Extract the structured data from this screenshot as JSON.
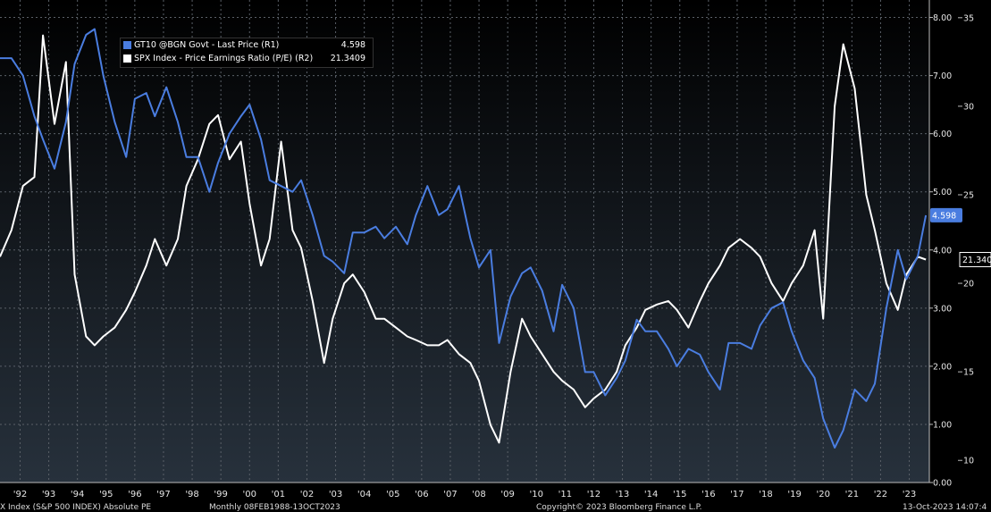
{
  "chart_data": {
    "type": "line",
    "colors": {
      "gt10": "#4a7de0",
      "pe": "#ffffff",
      "background_top": "#000000",
      "background_bottom": "#27313c",
      "grid": "#5a6068"
    },
    "x_range": [
      1991.5,
      2023.9
    ],
    "x_ticks": [
      {
        "label": "'92",
        "x": 1992.2
      },
      {
        "label": "'93",
        "x": 1993.2
      },
      {
        "label": "'94",
        "x": 1994.2
      },
      {
        "label": "'95",
        "x": 1995.2
      },
      {
        "label": "'96",
        "x": 1996.2
      },
      {
        "label": "'97",
        "x": 1997.2
      },
      {
        "label": "'98",
        "x": 1998.2
      },
      {
        "label": "'99",
        "x": 1999.2
      },
      {
        "label": "'00",
        "x": 2000.2
      },
      {
        "label": "'01",
        "x": 2001.2
      },
      {
        "label": "'02",
        "x": 2002.2
      },
      {
        "label": "'03",
        "x": 2003.2
      },
      {
        "label": "'04",
        "x": 2004.2
      },
      {
        "label": "'05",
        "x": 2005.2
      },
      {
        "label": "'06",
        "x": 2006.2
      },
      {
        "label": "'07",
        "x": 2007.2
      },
      {
        "label": "'08",
        "x": 2008.2
      },
      {
        "label": "'09",
        "x": 2009.2
      },
      {
        "label": "'10",
        "x": 2010.2
      },
      {
        "label": "'11",
        "x": 2011.2
      },
      {
        "label": "'12",
        "x": 2012.2
      },
      {
        "label": "'13",
        "x": 2013.2
      },
      {
        "label": "'14",
        "x": 2014.2
      },
      {
        "label": "'15",
        "x": 2015.2
      },
      {
        "label": "'16",
        "x": 2016.2
      },
      {
        "label": "'17",
        "x": 2017.2
      },
      {
        "label": "'18",
        "x": 2018.2
      },
      {
        "label": "'19",
        "x": 2019.2
      },
      {
        "label": "'20",
        "x": 2020.2
      },
      {
        "label": "'21",
        "x": 2021.2
      },
      {
        "label": "'22",
        "x": 2022.2
      },
      {
        "label": "'23",
        "x": 2023.2
      }
    ],
    "y_left": {
      "label": "R1",
      "range": [
        0,
        8.3
      ],
      "ticks": [
        "0.00",
        "1.00",
        "2.00",
        "3.00",
        "4.00",
        "5.00",
        "6.00",
        "7.00",
        "8.00"
      ]
    },
    "y_right": {
      "label": "R2",
      "range": [
        8.75,
        36.0
      ],
      "ticks": [
        "10",
        "15",
        "20",
        "25",
        "30",
        "35"
      ]
    },
    "grid": true,
    "legend_position": "top-left",
    "series": [
      {
        "name": "GT10 @BGN Govt - Last Price (R1)",
        "axis": "left",
        "last_value": "4.598",
        "tag": "4.598",
        "x": [
          1991.5,
          1991.9,
          1992.3,
          1992.7,
          1993.0,
          1993.4,
          1993.8,
          1994.1,
          1994.5,
          1994.8,
          1995.1,
          1995.5,
          1995.9,
          1996.2,
          1996.6,
          1996.9,
          1997.3,
          1997.7,
          1998.0,
          1998.4,
          1998.8,
          1999.1,
          1999.5,
          1999.9,
          2000.2,
          2000.6,
          2000.9,
          2001.3,
          2001.7,
          2002.0,
          2002.4,
          2002.8,
          2003.1,
          2003.5,
          2003.8,
          2004.2,
          2004.6,
          2004.9,
          2005.3,
          2005.7,
          2006.0,
          2006.4,
          2006.8,
          2007.1,
          2007.5,
          2007.9,
          2008.2,
          2008.6,
          2008.9,
          2009.3,
          2009.7,
          2010.0,
          2010.4,
          2010.8,
          2011.1,
          2011.5,
          2011.9,
          2012.2,
          2012.6,
          2013.0,
          2013.3,
          2013.7,
          2014.0,
          2014.4,
          2014.8,
          2015.1,
          2015.5,
          2015.9,
          2016.2,
          2016.6,
          2016.9,
          2017.3,
          2017.7,
          2018.0,
          2018.4,
          2018.8,
          2019.1,
          2019.5,
          2019.9,
          2020.2,
          2020.6,
          2020.9,
          2021.3,
          2021.7,
          2022.0,
          2022.4,
          2022.8,
          2023.1,
          2023.5,
          2023.78
        ],
        "y": [
          7.3,
          7.3,
          7.0,
          6.3,
          5.9,
          5.4,
          6.2,
          7.2,
          7.7,
          7.8,
          7.0,
          6.2,
          5.6,
          6.6,
          6.7,
          6.3,
          6.8,
          6.2,
          5.6,
          5.6,
          5.0,
          5.5,
          6.0,
          6.3,
          6.5,
          5.9,
          5.2,
          5.1,
          5.0,
          5.2,
          4.6,
          3.9,
          3.8,
          3.6,
          4.3,
          4.3,
          4.4,
          4.2,
          4.4,
          4.1,
          4.6,
          5.1,
          4.6,
          4.7,
          5.1,
          4.2,
          3.7,
          4.0,
          2.4,
          3.2,
          3.6,
          3.7,
          3.3,
          2.6,
          3.4,
          3.0,
          1.9,
          1.9,
          1.5,
          1.8,
          2.1,
          2.8,
          2.6,
          2.6,
          2.3,
          2.0,
          2.3,
          2.2,
          1.9,
          1.6,
          2.4,
          2.4,
          2.3,
          2.7,
          3.0,
          3.1,
          2.6,
          2.1,
          1.8,
          1.1,
          0.6,
          0.9,
          1.6,
          1.4,
          1.7,
          3.0,
          4.0,
          3.5,
          3.9,
          4.598
        ]
      },
      {
        "name": "SPX Index - Price Earnings Ratio (P/E) (R2)",
        "axis": "right",
        "last_value": "21.3409",
        "tag": "21.340",
        "x": [
          1991.5,
          1991.9,
          1992.3,
          1992.7,
          1993.0,
          1993.4,
          1993.8,
          1994.1,
          1994.5,
          1994.8,
          1995.1,
          1995.5,
          1995.9,
          1996.2,
          1996.6,
          1996.9,
          1997.3,
          1997.7,
          1998.0,
          1998.4,
          1998.8,
          1999.1,
          1999.5,
          1999.9,
          2000.2,
          2000.6,
          2000.9,
          2001.3,
          2001.7,
          2002.0,
          2002.4,
          2002.8,
          2003.1,
          2003.5,
          2003.8,
          2004.2,
          2004.6,
          2004.9,
          2005.3,
          2005.7,
          2006.0,
          2006.4,
          2006.8,
          2007.1,
          2007.5,
          2007.9,
          2008.2,
          2008.6,
          2008.9,
          2009.3,
          2009.7,
          2010.0,
          2010.4,
          2010.8,
          2011.1,
          2011.5,
          2011.9,
          2012.2,
          2012.6,
          2013.0,
          2013.3,
          2013.7,
          2014.0,
          2014.4,
          2014.8,
          2015.1,
          2015.5,
          2015.9,
          2016.2,
          2016.6,
          2016.9,
          2017.3,
          2017.7,
          2018.0,
          2018.4,
          2018.8,
          2019.1,
          2019.5,
          2019.9,
          2020.2,
          2020.6,
          2020.9,
          2021.3,
          2021.7,
          2022.0,
          2022.4,
          2022.8,
          2023.1,
          2023.5,
          2023.78
        ],
        "y": [
          21.5,
          23.0,
          25.5,
          26.0,
          34.0,
          29.0,
          32.5,
          20.5,
          17.0,
          16.5,
          17.0,
          17.5,
          18.5,
          19.5,
          21.0,
          22.5,
          21.0,
          22.5,
          25.5,
          27.0,
          29.0,
          29.5,
          27.0,
          28.0,
          24.5,
          21.0,
          22.5,
          28.0,
          23.0,
          22.0,
          19.0,
          15.5,
          18.0,
          20.0,
          20.5,
          19.5,
          18.0,
          18.0,
          17.5,
          17.0,
          16.8,
          16.5,
          16.5,
          16.8,
          16.0,
          15.5,
          14.5,
          12.0,
          11.0,
          15.0,
          18.0,
          17.0,
          16.0,
          15.0,
          14.5,
          14.0,
          13.0,
          13.5,
          14.0,
          15.0,
          16.5,
          17.5,
          18.5,
          18.8,
          19.0,
          18.5,
          17.5,
          19.0,
          20.0,
          21.0,
          22.0,
          22.5,
          22.0,
          21.5,
          20.0,
          19.0,
          20.0,
          21.0,
          23.0,
          18.0,
          30.0,
          33.5,
          31.0,
          25.0,
          23.0,
          20.0,
          18.5,
          20.5,
          21.5,
          21.3409
        ]
      }
    ]
  },
  "legend": {
    "rows": [
      {
        "label": "GT10 @BGN Govt - Last Price (R1)",
        "value": "4.598"
      },
      {
        "label": "SPX Index - Price Earnings Ratio (P/E) (R2)",
        "value": "21.3409"
      }
    ]
  },
  "footer": {
    "left": "X Index (S&P 500 INDEX) Absolute PE",
    "middle": "Monthly 08FEB1988-13OCT2023",
    "copyright": "Copyright© 2023 Bloomberg Finance L.P.",
    "timestamp": "13-Oct-2023 14:07:4"
  }
}
